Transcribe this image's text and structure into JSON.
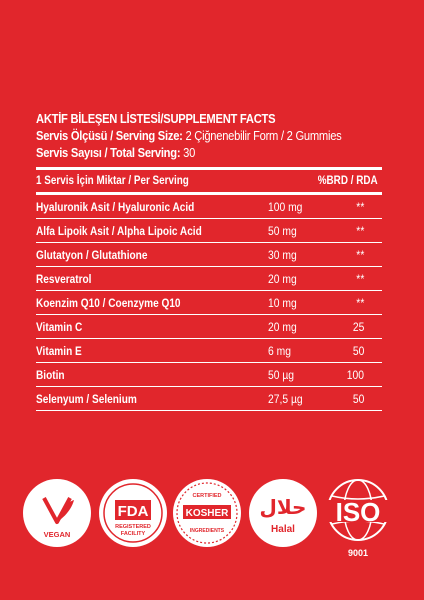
{
  "facts": {
    "title": "AKTİF BİLEŞEN LİSTESİ/SUPPLEMENT FACTS",
    "serving_size_label": "Servis Ölçüsü / Serving Size:",
    "serving_size_value": "2 Çiğnenebilir Form / 2 Gummies",
    "total_serving_label": "Servis Sayısı / Total Serving:",
    "total_serving_value": "30",
    "header_left": "1 Servis İçin Miktar / Per Serving",
    "header_right": "%BRD / RDA",
    "rows": [
      {
        "name": "Hyaluronik Asit / Hyaluronic Acid",
        "amount": "100 mg",
        "rda": "**"
      },
      {
        "name": "Alfa Lipoik Asit / Alpha Lipoic Acid",
        "amount": "50 mg",
        "rda": "**"
      },
      {
        "name": "Glutatyon / Glutathione",
        "amount": "30 mg",
        "rda": "**"
      },
      {
        "name": "Resveratrol",
        "amount": "20 mg",
        "rda": "**"
      },
      {
        "name": "Koenzim Q10 / Coenzyme Q10",
        "amount": "10 mg",
        "rda": "**"
      },
      {
        "name": "Vitamin C",
        "amount": "20 mg",
        "rda": "25"
      },
      {
        "name": "Vitamin E",
        "amount": "6 mg",
        "rda": "50"
      },
      {
        "name": "Biotin",
        "amount": "50 µg",
        "rda": "100"
      },
      {
        "name": "Selenyum / Selenium",
        "amount": "27,5 µg",
        "rda": "50"
      }
    ]
  },
  "badges": {
    "vegan": "VEGAN",
    "fda_main": "FDA",
    "fda_line1": "REGISTERED",
    "fda_line2": "FACILITY",
    "kosher_top": "CERTIFIED",
    "kosher_main": "KOSHER",
    "kosher_bottom": "INGREDIENTS",
    "halal_arabic": "حلال",
    "halal_main": "Halal",
    "iso_main": "ISO",
    "iso_number": "9001"
  },
  "colors": {
    "background": "#e1262c",
    "foreground": "#ffffff"
  }
}
